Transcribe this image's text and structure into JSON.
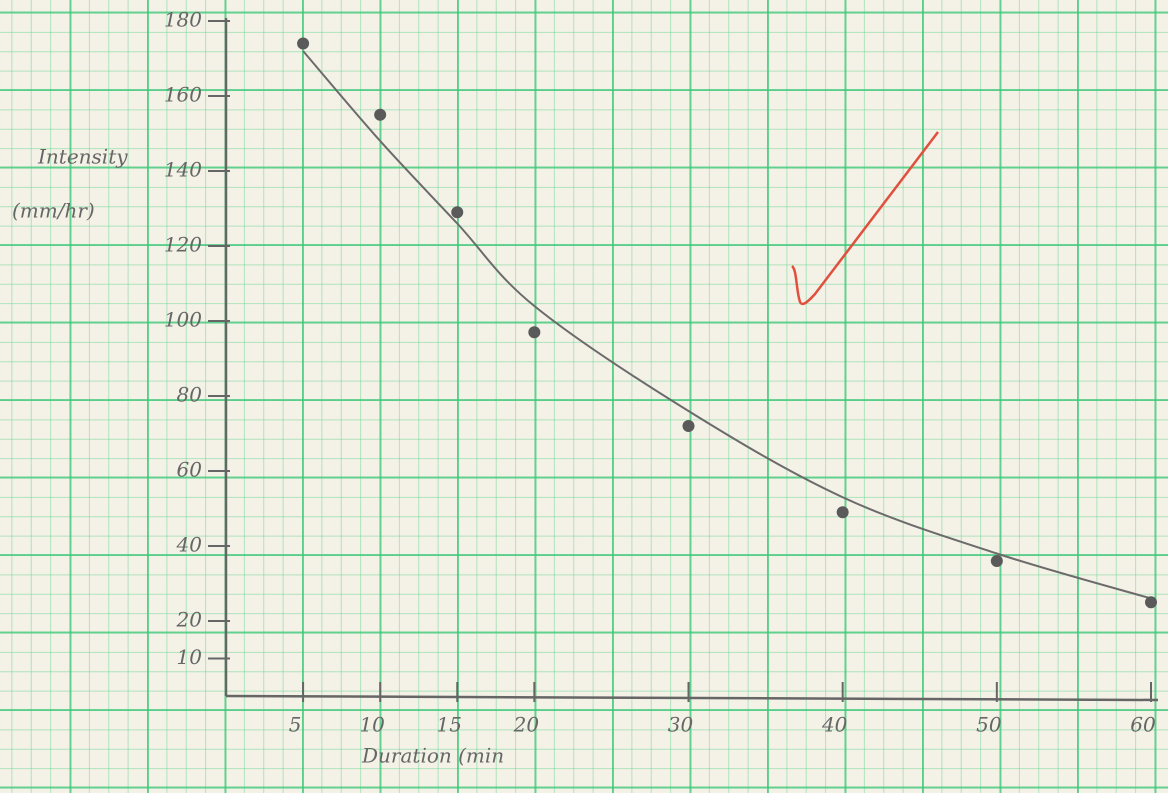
{
  "chart_data": {
    "type": "scatter",
    "ylabel_lines": [
      "Intensity",
      "(mm/hr)"
    ],
    "xlabel": "Duration (min",
    "x": [
      5,
      10,
      15,
      20,
      30,
      40,
      50,
      60
    ],
    "values": [
      174,
      155,
      129,
      97,
      72,
      49,
      36,
      25
    ],
    "color": "#5a5a5a",
    "fit": {
      "x": [
        5,
        10,
        15,
        20,
        30,
        40,
        50,
        60
      ],
      "values": [
        172,
        148,
        126,
        104,
        76,
        53,
        38,
        26
      ],
      "color": "#6b6b6b"
    },
    "xlim": [
      0,
      60
    ],
    "xticks": [
      5,
      10,
      15,
      20,
      30,
      40,
      50,
      60
    ],
    "ylim": [
      0,
      180
    ],
    "yticks": [
      10,
      20,
      40,
      60,
      80,
      100,
      120,
      140,
      160,
      180
    ]
  }
}
